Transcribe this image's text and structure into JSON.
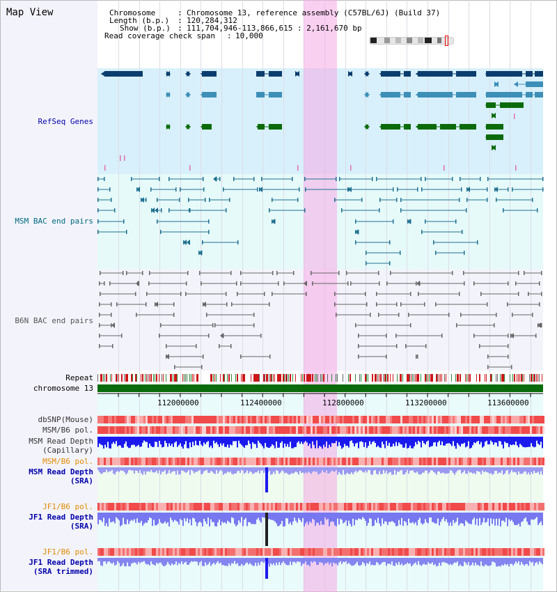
{
  "title": "Map View",
  "info": {
    "chromosome_label": "Chromosome",
    "chromosome_value": "Chromosome 13, reference assembly (C57BL/6J) (Build 37)",
    "length_label": "Length (b.p.)",
    "length_value": "120,284,312",
    "show_label": "Show (b.p.)",
    "show_value": "111,704,946-113,866,615 : 2,161,670 bp",
    "span_label": "Read coverage check span",
    "span_value": "10,000"
  },
  "tracks": {
    "refseq": "RefSeq Genes",
    "msm_bac": "MSM BAC end pairs",
    "b6n_bac": "B6N BAC end pairs",
    "repeat": "Repeat",
    "chromosome": "chromosome 13",
    "dbsnp": "dbSNP(Mouse)",
    "msm_b6_pol": "MSM/B6 pol.",
    "msm_depth_cap_1": "MSM Read Depth",
    "msm_depth_cap_2": "(Capillary)",
    "msm_b6_pol_2": "MSM/B6 pol.",
    "msm_depth_sra_1": "MSM Read Depth",
    "msm_depth_sra_2": "(SRA)",
    "jf1_b6_pol": "JF1/B6 pol.",
    "jf1_depth_sra_1": "JF1 Read Depth",
    "jf1_depth_sra_2": "(SRA)",
    "jf1_b6_pol_2": "JF1/B6 pol.",
    "jf1_depth_trim_1": "JF1 Read Depth",
    "jf1_depth_trim_2": "(SRA trimmed)"
  },
  "axis": {
    "ticks": [
      "112000000",
      "112400000",
      "112800000",
      "113200000",
      "113600000"
    ]
  },
  "colors": {
    "refseq_dark": "#0b3d6e",
    "refseq_mid": "#3d8fb8",
    "refseq_green": "#0b6b0b",
    "msm_bac": "#1f7090",
    "b6n_bac": "#666666",
    "depth_blue": "#1a1aee",
    "depth_light": "#7777f0",
    "label_blue": "#0000aa",
    "label_orange": "#e08a00",
    "highlight": "#f5aae6"
  }
}
